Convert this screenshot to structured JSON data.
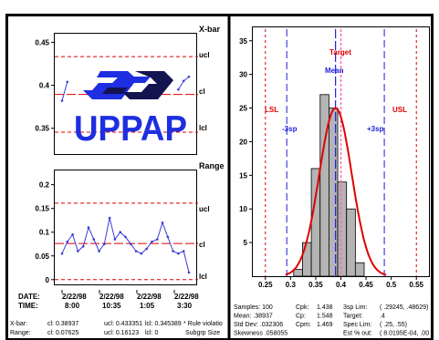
{
  "logo": {
    "text": "UPPAP"
  },
  "xbar": {
    "title": "X-bar",
    "yticks": [
      "0.45",
      "0.4",
      "0.35"
    ],
    "limit_labels": {
      "ucl": "ucl",
      "cl": "cl",
      "lcl": "lcl"
    }
  },
  "range": {
    "title": "Range",
    "yticks": [
      "0.2",
      "0.15",
      "0.1",
      "0.05",
      "0"
    ],
    "limit_labels": {
      "ucl": "ucl",
      "cl": "cl",
      "lcl": "lcl"
    }
  },
  "dates": {
    "date_label": "DATE:",
    "time_label": "TIME:",
    "dates": [
      "2/22/98",
      "2/22/98",
      "2/22/98",
      "2/22/98"
    ],
    "times": [
      "8:00",
      "10:35",
      "1:05",
      "3:30"
    ]
  },
  "stats_left": {
    "xbar_row": {
      "label": "X-bar:",
      "cl": "cl: 0.38937",
      "ucl": "ucl: 0.433351",
      "lcl": "lcl: 0.345389",
      "rule": "* Rule violatio"
    },
    "range_row": {
      "label": "Range:",
      "cl": "cl: 0.07625",
      "ucl": "ucl: 0.16123",
      "lcl": "lcl: 0",
      "subgrp": "Subgrp Size"
    }
  },
  "histogram": {
    "xticks": [
      "0.25",
      "0.3",
      "0.35",
      "0.4",
      "0.45",
      "0.5",
      "0.55"
    ],
    "yticks": [
      "35",
      "30",
      "25",
      "20",
      "15",
      "10",
      "5"
    ],
    "labels": {
      "lsl": "LSL",
      "usl": "USL",
      "target": "Target",
      "mean": "Mean",
      "minus3": "-3sp",
      "plus3": "+3sp"
    }
  },
  "stats_right": {
    "col1": [
      "Samples: 100",
      "Mean:   .38937",
      "Std Dev:  .032306",
      "Skewness .058055"
    ],
    "col2": [
      "Cpk:",
      "Cp:",
      "Cpm:"
    ],
    "col3": [
      "1.438",
      "1.548",
      "1.469"
    ],
    "col4": [
      "3sp Lim:",
      "Target:",
      "Spec Lim:",
      "Est % out:"
    ],
    "col5": [
      "( .29245,  .48629)",
      ".4",
      "( .25,  .55)",
      "( 8.0195E-04,  .00"
    ]
  },
  "colors": {
    "ucl_line": "#e00000",
    "cl_line": "#e00000",
    "series_line": "#3c3cd8",
    "logo_blue": "#1e2ee0",
    "logo_dark": "#141450",
    "bar_fill": "#b4b4b4",
    "normal_curve": "#e00000",
    "spec_line": "#e00000",
    "sigma_line": "#1e1ed8",
    "mean_line": "#1e1ed8",
    "target_line": "#ff69b4",
    "label_red": "#e00000",
    "label_blue": "#1e1ed8"
  },
  "chart_data": [
    {
      "type": "line",
      "title": "X-bar",
      "ylim": [
        0.32,
        0.46
      ],
      "x": [
        1,
        2,
        3,
        4,
        5,
        6,
        7,
        8,
        9,
        10,
        11,
        12,
        13,
        14,
        15,
        16,
        17,
        18,
        19,
        20,
        21,
        22,
        23,
        24,
        25
      ],
      "series": [
        {
          "values": [
            0.382,
            0.404,
            null,
            null,
            null,
            null,
            null,
            null,
            null,
            null,
            null,
            null,
            null,
            null,
            null,
            null,
            null,
            null,
            null,
            null,
            null,
            null,
            0.395,
            0.405,
            0.41
          ]
        }
      ],
      "control_limits": {
        "ucl": 0.433351,
        "cl": 0.38937,
        "lcl": 0.345389
      }
    },
    {
      "type": "line",
      "title": "Range",
      "ylim": [
        -0.01,
        0.23
      ],
      "x": [
        1,
        2,
        3,
        4,
        5,
        6,
        7,
        8,
        9,
        10,
        11,
        12,
        13,
        14,
        15,
        16,
        17,
        18,
        19,
        20,
        21,
        22,
        23,
        24,
        25
      ],
      "series": [
        {
          "values": [
            0.055,
            0.08,
            0.095,
            0.06,
            0.07,
            0.11,
            0.085,
            0.06,
            0.075,
            0.13,
            0.085,
            0.1,
            0.09,
            0.075,
            0.06,
            0.055,
            0.065,
            0.08,
            0.085,
            0.12,
            0.09,
            0.06,
            0.055,
            0.06,
            0.015
          ]
        }
      ],
      "control_limits": {
        "ucl": 0.16123,
        "cl": 0.07625,
        "lcl": 0
      }
    },
    {
      "type": "bar",
      "xlim": [
        0.225,
        0.575
      ],
      "ylim": [
        0,
        37
      ],
      "bin_width": 0.0175,
      "bins": [
        {
          "x": 0.315,
          "count": 1
        },
        {
          "x": 0.3325,
          "count": 5
        },
        {
          "x": 0.35,
          "count": 16
        },
        {
          "x": 0.3675,
          "count": 27
        },
        {
          "x": 0.385,
          "count": 25
        },
        {
          "x": 0.4025,
          "count": 14
        },
        {
          "x": 0.42,
          "count": 10
        },
        {
          "x": 0.4375,
          "count": 2
        }
      ],
      "normal_fit": {
        "mean": 0.38937,
        "sd": 0.032306,
        "peak": 25
      },
      "reference_lines": {
        "lsl": 0.25,
        "usl": 0.55,
        "minus_3sp": 0.29245,
        "plus_3sp": 0.48629,
        "mean": 0.38937,
        "target": 0.4
      }
    }
  ]
}
